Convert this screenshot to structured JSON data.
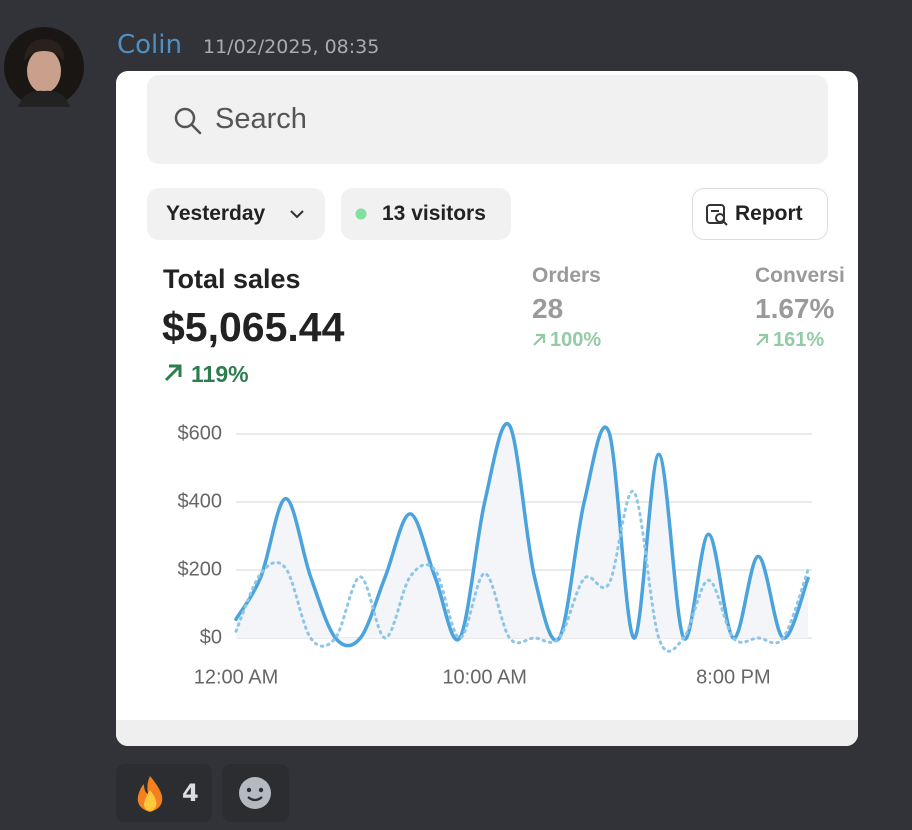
{
  "message": {
    "author": "Colin",
    "timestamp": "11/02/2025, 08:35"
  },
  "embed": {
    "search_placeholder": "Search",
    "filters": {
      "date": "Yesterday",
      "visitors": "13 visitors",
      "report": "Report"
    },
    "total_sales": {
      "label": "Total sales",
      "value": "$5,065.44",
      "change": "119%"
    },
    "metrics": [
      {
        "label": "Orders",
        "value": "28",
        "change": "100%"
      },
      {
        "label": "Conversi",
        "value": "1.67%",
        "change": "161%"
      }
    ]
  },
  "chart_data": {
    "type": "line",
    "x": [
      0,
      1,
      2,
      3,
      4,
      5,
      6,
      7,
      8,
      9,
      10,
      11,
      12,
      13,
      14,
      15,
      16,
      17,
      18,
      19,
      20,
      21,
      22,
      23
    ],
    "series": [
      {
        "color": "#4ba3dd",
        "values": [
          55,
          180,
          410,
          180,
          0,
          0,
          180,
          365,
          180,
          0,
          400,
          625,
          180,
          0,
          400,
          605,
          0,
          540,
          0,
          305,
          0,
          240,
          0,
          175
        ]
      },
      {
        "color": "#8ec6e8",
        "values": [
          20,
          190,
          205,
          0,
          0,
          180,
          0,
          180,
          200,
          0,
          190,
          0,
          0,
          0,
          175,
          160,
          430,
          0,
          0,
          170,
          0,
          0,
          0,
          200
        ]
      }
    ],
    "xlim": [
      0,
      23
    ],
    "xticks": [
      {
        "value": 0,
        "label": "12:00 AM"
      },
      {
        "value": 10,
        "label": "10:00 AM"
      },
      {
        "value": 20,
        "label": "8:00 PM"
      }
    ],
    "ylim": [
      0,
      600
    ],
    "yticks": [
      {
        "value": 0,
        "label": "$0"
      },
      {
        "value": 200,
        "label": "$200"
      },
      {
        "value": 400,
        "label": "$400"
      },
      {
        "value": 600,
        "label": "$600"
      }
    ],
    "grid": true
  },
  "reactions": [
    {
      "count": 4
    }
  ]
}
